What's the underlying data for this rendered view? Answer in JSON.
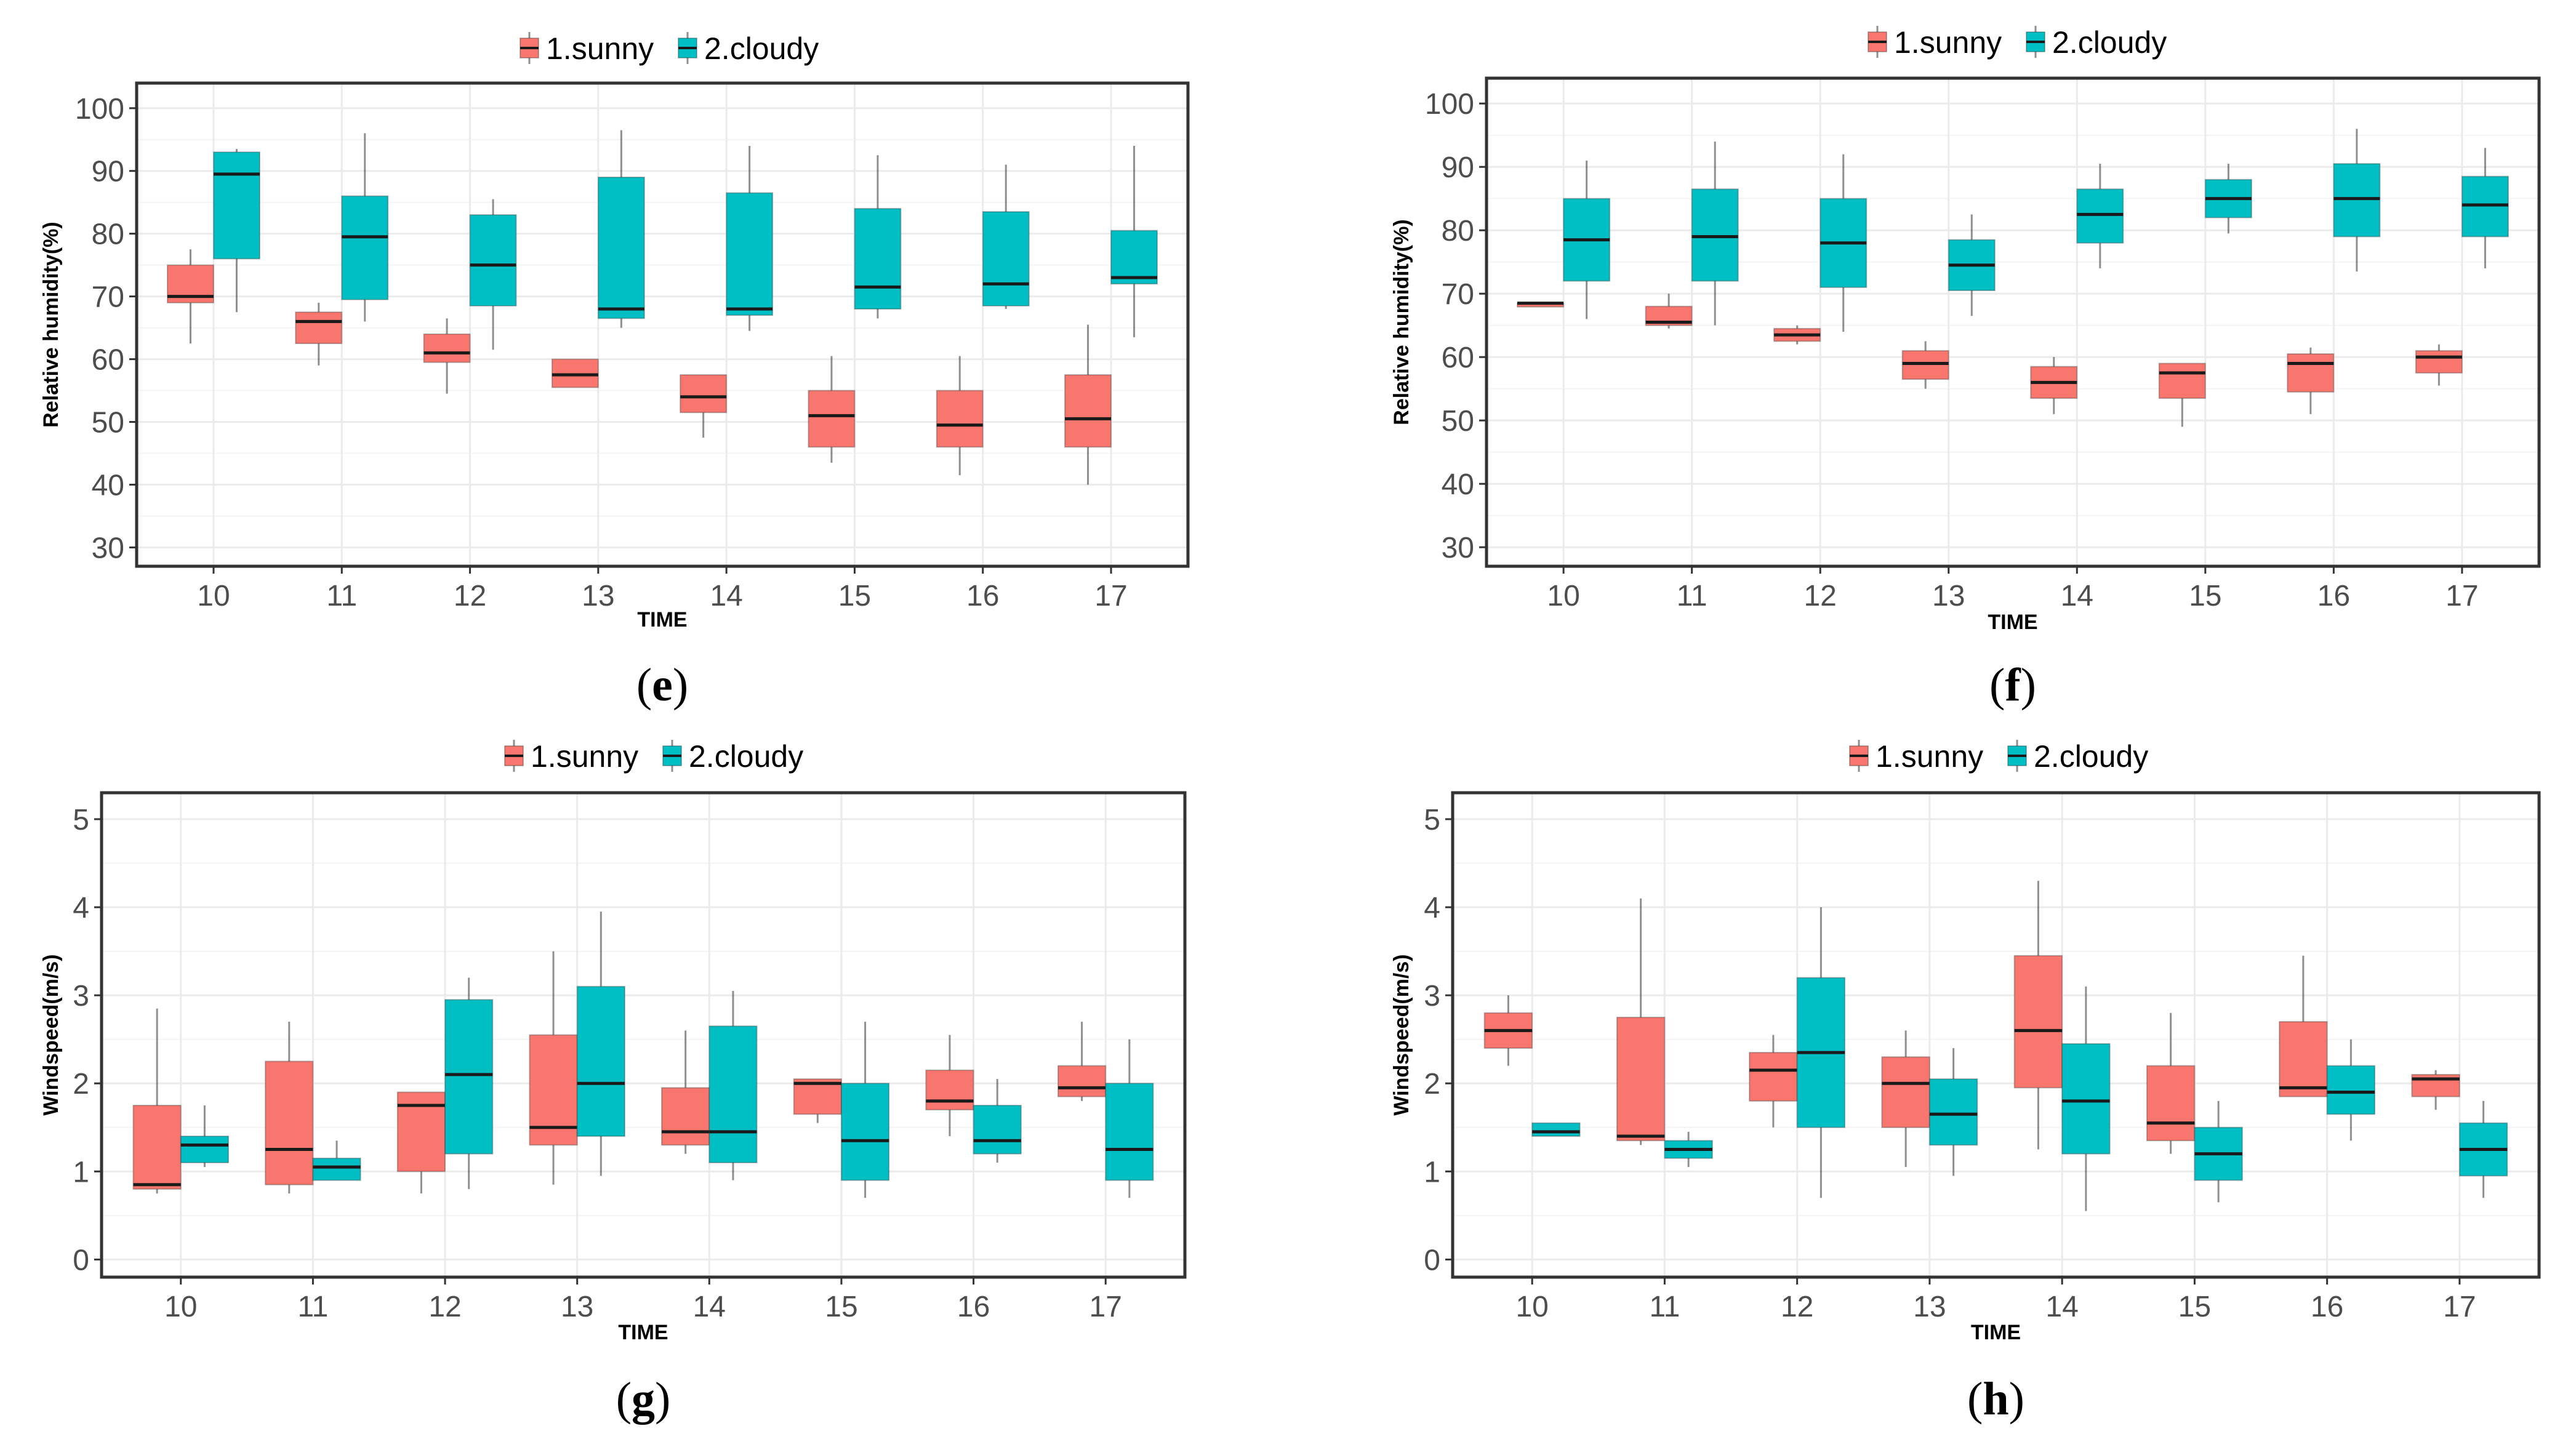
{
  "legend_labels": [
    "1.sunny",
    "2.cloudy"
  ],
  "colors": {
    "sunny": "#F8766D",
    "cloudy": "#00BFC4",
    "grid": "#EBEBEB",
    "border": "#333333"
  },
  "chart_data": [
    {
      "panel_label": "e",
      "type": "boxplot",
      "xlabel": "TIME",
      "ylabel": "Relative humidity(%)",
      "ylim": [
        27,
        104
      ],
      "yticks": [
        30,
        40,
        50,
        60,
        70,
        80,
        90,
        100
      ],
      "categories": [
        "10",
        "11",
        "12",
        "13",
        "14",
        "15",
        "16",
        "17"
      ],
      "series": [
        {
          "name": "1.sunny",
          "boxes": [
            {
              "whisker_low": 62.5,
              "q1": 69,
              "median": 70,
              "q3": 75,
              "whisker_high": 77.5
            },
            {
              "whisker_low": 59,
              "q1": 62.5,
              "median": 66,
              "q3": 67.5,
              "whisker_high": 69
            },
            {
              "whisker_low": 54.5,
              "q1": 59.5,
              "median": 61,
              "q3": 64,
              "whisker_high": 66.5
            },
            {
              "whisker_low": 55.5,
              "q1": 55.5,
              "median": 57.5,
              "q3": 60,
              "whisker_high": 60
            },
            {
              "whisker_low": 47.5,
              "q1": 51.5,
              "median": 54,
              "q3": 57.5,
              "whisker_high": 57.5
            },
            {
              "whisker_low": 43.5,
              "q1": 46,
              "median": 51,
              "q3": 55,
              "whisker_high": 60.5
            },
            {
              "whisker_low": 41.5,
              "q1": 46,
              "median": 49.5,
              "q3": 55,
              "whisker_high": 60.5
            },
            {
              "whisker_low": 40,
              "q1": 46,
              "median": 50.5,
              "q3": 57.5,
              "whisker_high": 65.5
            }
          ]
        },
        {
          "name": "2.cloudy",
          "boxes": [
            {
              "whisker_low": 67.5,
              "q1": 76,
              "median": 89.5,
              "q3": 93,
              "whisker_high": 93.5
            },
            {
              "whisker_low": 66,
              "q1": 69.5,
              "median": 79.5,
              "q3": 86,
              "whisker_high": 96
            },
            {
              "whisker_low": 61.5,
              "q1": 68.5,
              "median": 75,
              "q3": 83,
              "whisker_high": 85.5
            },
            {
              "whisker_low": 65,
              "q1": 66.5,
              "median": 68,
              "q3": 89,
              "whisker_high": 96.5
            },
            {
              "whisker_low": 64.5,
              "q1": 67,
              "median": 68,
              "q3": 86.5,
              "whisker_high": 94
            },
            {
              "whisker_low": 66.5,
              "q1": 68,
              "median": 71.5,
              "q3": 84,
              "whisker_high": 92.5
            },
            {
              "whisker_low": 68,
              "q1": 68.5,
              "median": 72,
              "q3": 83.5,
              "whisker_high": 91
            },
            {
              "whisker_low": 63.5,
              "q1": 72,
              "median": 73,
              "q3": 80.5,
              "whisker_high": 94
            }
          ]
        }
      ]
    },
    {
      "panel_label": "f",
      "type": "boxplot",
      "xlabel": "TIME",
      "ylabel": "Relative humidity(%)",
      "ylim": [
        27,
        104
      ],
      "yticks": [
        30,
        40,
        50,
        60,
        70,
        80,
        90,
        100
      ],
      "categories": [
        "10",
        "11",
        "12",
        "13",
        "14",
        "15",
        "16",
        "17"
      ],
      "series": [
        {
          "name": "1.sunny",
          "boxes": [
            {
              "whisker_low": 68.5,
              "q1": 68.5,
              "median": 68.5,
              "q3": 68.5,
              "whisker_high": 68.5
            },
            {
              "whisker_low": 64.5,
              "q1": 65,
              "median": 65.5,
              "q3": 68,
              "whisker_high": 70
            },
            {
              "whisker_low": 62,
              "q1": 62.5,
              "median": 63.5,
              "q3": 64.5,
              "whisker_high": 65
            },
            {
              "whisker_low": 55,
              "q1": 56.5,
              "median": 59,
              "q3": 61,
              "whisker_high": 62.5
            },
            {
              "whisker_low": 51,
              "q1": 53.5,
              "median": 56,
              "q3": 58.5,
              "whisker_high": 60
            },
            {
              "whisker_low": 49,
              "q1": 53.5,
              "median": 57.5,
              "q3": 59,
              "whisker_high": 59
            },
            {
              "whisker_low": 51,
              "q1": 54.5,
              "median": 59,
              "q3": 60.5,
              "whisker_high": 61.5
            },
            {
              "whisker_low": 55.5,
              "q1": 57.5,
              "median": 60,
              "q3": 61,
              "whisker_high": 62
            }
          ]
        },
        {
          "name": "2.cloudy",
          "boxes": [
            {
              "whisker_low": 66,
              "q1": 72,
              "median": 78.5,
              "q3": 85,
              "whisker_high": 91
            },
            {
              "whisker_low": 65,
              "q1": 72,
              "median": 79,
              "q3": 86.5,
              "whisker_high": 94
            },
            {
              "whisker_low": 64,
              "q1": 71,
              "median": 78,
              "q3": 85,
              "whisker_high": 92
            },
            {
              "whisker_low": 66.5,
              "q1": 70.5,
              "median": 74.5,
              "q3": 78.5,
              "whisker_high": 82.5
            },
            {
              "whisker_low": 74,
              "q1": 78,
              "median": 82.5,
              "q3": 86.5,
              "whisker_high": 90.5
            },
            {
              "whisker_low": 79.5,
              "q1": 82,
              "median": 85,
              "q3": 88,
              "whisker_high": 90.5
            },
            {
              "whisker_low": 73.5,
              "q1": 79,
              "median": 85,
              "q3": 90.5,
              "whisker_high": 96
            },
            {
              "whisker_low": 74,
              "q1": 79,
              "median": 84,
              "q3": 88.5,
              "whisker_high": 93
            }
          ]
        }
      ]
    },
    {
      "panel_label": "g",
      "type": "boxplot",
      "xlabel": "TIME",
      "ylabel": "Windspeed(m/s)",
      "ylim": [
        -0.2,
        5.3
      ],
      "yticks": [
        0,
        1,
        2,
        3,
        4,
        5
      ],
      "categories": [
        "10",
        "11",
        "12",
        "13",
        "14",
        "15",
        "16",
        "17"
      ],
      "series": [
        {
          "name": "1.sunny",
          "boxes": [
            {
              "whisker_low": 0.75,
              "q1": 0.8,
              "median": 0.85,
              "q3": 1.75,
              "whisker_high": 2.85
            },
            {
              "whisker_low": 0.75,
              "q1": 0.85,
              "median": 1.25,
              "q3": 2.25,
              "whisker_high": 2.7
            },
            {
              "whisker_low": 0.75,
              "q1": 1.0,
              "median": 1.75,
              "q3": 1.9,
              "whisker_high": 1.9
            },
            {
              "whisker_low": 0.85,
              "q1": 1.3,
              "median": 1.5,
              "q3": 2.55,
              "whisker_high": 3.5
            },
            {
              "whisker_low": 1.2,
              "q1": 1.3,
              "median": 1.45,
              "q3": 1.95,
              "whisker_high": 2.6
            },
            {
              "whisker_low": 1.55,
              "q1": 1.65,
              "median": 2.0,
              "q3": 2.05,
              "whisker_high": 2.05
            },
            {
              "whisker_low": 1.4,
              "q1": 1.7,
              "median": 1.8,
              "q3": 2.15,
              "whisker_high": 2.55
            },
            {
              "whisker_low": 1.8,
              "q1": 1.85,
              "median": 1.95,
              "q3": 2.2,
              "whisker_high": 2.7
            }
          ]
        },
        {
          "name": "2.cloudy",
          "boxes": [
            {
              "whisker_low": 1.05,
              "q1": 1.1,
              "median": 1.3,
              "q3": 1.4,
              "whisker_high": 1.75
            },
            {
              "whisker_low": 0.9,
              "q1": 0.9,
              "median": 1.05,
              "q3": 1.15,
              "whisker_high": 1.35
            },
            {
              "whisker_low": 0.8,
              "q1": 1.2,
              "median": 2.1,
              "q3": 2.95,
              "whisker_high": 3.2
            },
            {
              "whisker_low": 0.95,
              "q1": 1.4,
              "median": 2.0,
              "q3": 3.1,
              "whisker_high": 3.95
            },
            {
              "whisker_low": 0.9,
              "q1": 1.1,
              "median": 1.45,
              "q3": 2.65,
              "whisker_high": 3.05
            },
            {
              "whisker_low": 0.7,
              "q1": 0.9,
              "median": 1.35,
              "q3": 2.0,
              "whisker_high": 2.7
            },
            {
              "whisker_low": 1.1,
              "q1": 1.2,
              "median": 1.35,
              "q3": 1.75,
              "whisker_high": 2.05
            },
            {
              "whisker_low": 0.7,
              "q1": 0.9,
              "median": 1.25,
              "q3": 2.0,
              "whisker_high": 2.5
            }
          ]
        }
      ]
    },
    {
      "panel_label": "h",
      "type": "boxplot",
      "xlabel": "TIME",
      "ylabel": "Windspeed(m/s)",
      "ylim": [
        -0.2,
        5.3
      ],
      "yticks": [
        0,
        1,
        2,
        3,
        4,
        5
      ],
      "categories": [
        "10",
        "11",
        "12",
        "13",
        "14",
        "15",
        "16",
        "17"
      ],
      "series": [
        {
          "name": "1.sunny",
          "boxes": [
            {
              "whisker_low": 2.2,
              "q1": 2.4,
              "median": 2.6,
              "q3": 2.8,
              "whisker_high": 3.0
            },
            {
              "whisker_low": 1.3,
              "q1": 1.35,
              "median": 1.4,
              "q3": 2.75,
              "whisker_high": 4.1
            },
            {
              "whisker_low": 1.5,
              "q1": 1.8,
              "median": 2.15,
              "q3": 2.35,
              "whisker_high": 2.55
            },
            {
              "whisker_low": 1.05,
              "q1": 1.5,
              "median": 2.0,
              "q3": 2.3,
              "whisker_high": 2.6
            },
            {
              "whisker_low": 1.25,
              "q1": 1.95,
              "median": 2.6,
              "q3": 3.45,
              "whisker_high": 4.3
            },
            {
              "whisker_low": 1.2,
              "q1": 1.35,
              "median": 1.55,
              "q3": 2.2,
              "whisker_high": 2.8
            },
            {
              "whisker_low": 1.85,
              "q1": 1.85,
              "median": 1.95,
              "q3": 2.7,
              "whisker_high": 3.45
            },
            {
              "whisker_low": 1.7,
              "q1": 1.85,
              "median": 2.05,
              "q3": 2.1,
              "whisker_high": 2.15
            }
          ]
        },
        {
          "name": "2.cloudy",
          "boxes": [
            {
              "whisker_low": 1.4,
              "q1": 1.4,
              "median": 1.45,
              "q3": 1.55,
              "whisker_high": 1.55
            },
            {
              "whisker_low": 1.05,
              "q1": 1.15,
              "median": 1.25,
              "q3": 1.35,
              "whisker_high": 1.45
            },
            {
              "whisker_low": 0.7,
              "q1": 1.5,
              "median": 2.35,
              "q3": 3.2,
              "whisker_high": 4.0
            },
            {
              "whisker_low": 0.95,
              "q1": 1.3,
              "median": 1.65,
              "q3": 2.05,
              "whisker_high": 2.4
            },
            {
              "whisker_low": 0.55,
              "q1": 1.2,
              "median": 1.8,
              "q3": 2.45,
              "whisker_high": 3.1
            },
            {
              "whisker_low": 0.65,
              "q1": 0.9,
              "median": 1.2,
              "q3": 1.5,
              "whisker_high": 1.8
            },
            {
              "whisker_low": 1.35,
              "q1": 1.65,
              "median": 1.9,
              "q3": 2.2,
              "whisker_high": 2.5
            },
            {
              "whisker_low": 0.7,
              "q1": 0.95,
              "median": 1.25,
              "q3": 1.55,
              "whisker_high": 1.8
            }
          ]
        }
      ]
    }
  ]
}
